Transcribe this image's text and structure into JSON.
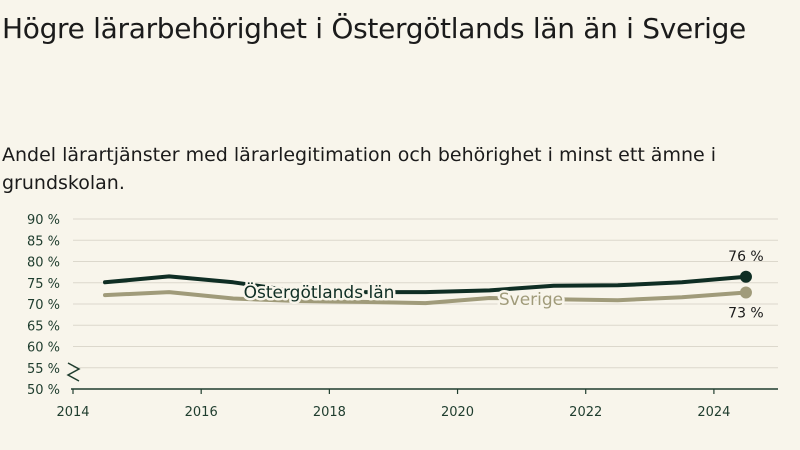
{
  "title": "Högre lärarbehörighet i Östergötlands län än i Sverige",
  "subtitle": "Andel lärartjänster med lärarlegitimation och behörighet i minst ett ämne i grundskolan.",
  "colors": {
    "background": "#f8f5eb",
    "ostergotland": "#0f2e24",
    "sverige": "#a09b7a",
    "grid": "#dcd8cc",
    "axis": "#1f3d2e"
  },
  "chart_data": {
    "type": "line",
    "x": [
      2014.5,
      2015.5,
      2016.5,
      2017.5,
      2018.5,
      2019.5,
      2020.5,
      2021.5,
      2022.5,
      2023.5,
      2024.5
    ],
    "series": [
      {
        "name": "Östergötlands län",
        "values": [
          75.1,
          76.5,
          75.1,
          73.0,
          72.8,
          72.8,
          73.2,
          74.3,
          74.4,
          75.1,
          76.4
        ],
        "end_label": "76 %"
      },
      {
        "name": "Sverige",
        "values": [
          72.1,
          72.8,
          71.3,
          70.7,
          70.5,
          70.2,
          71.4,
          71.1,
          70.9,
          71.6,
          72.7
        ],
        "end_label": "73 %"
      }
    ],
    "y_ticks": [
      50,
      55,
      60,
      65,
      70,
      75,
      80,
      85,
      90
    ],
    "y_tick_labels": [
      "50 %",
      "55 %",
      "60 %",
      "65 %",
      "70 %",
      "75 %",
      "80 %",
      "85 %",
      "90 %"
    ],
    "x_ticks": [
      2014,
      2016,
      2018,
      2020,
      2022,
      2024
    ],
    "x_tick_labels": [
      "2014",
      "2016",
      "2018",
      "2020",
      "2022",
      "2024"
    ],
    "xlim": [
      2014,
      2025
    ],
    "ylim": [
      50,
      90
    ],
    "axis_break": true,
    "grid": true
  }
}
